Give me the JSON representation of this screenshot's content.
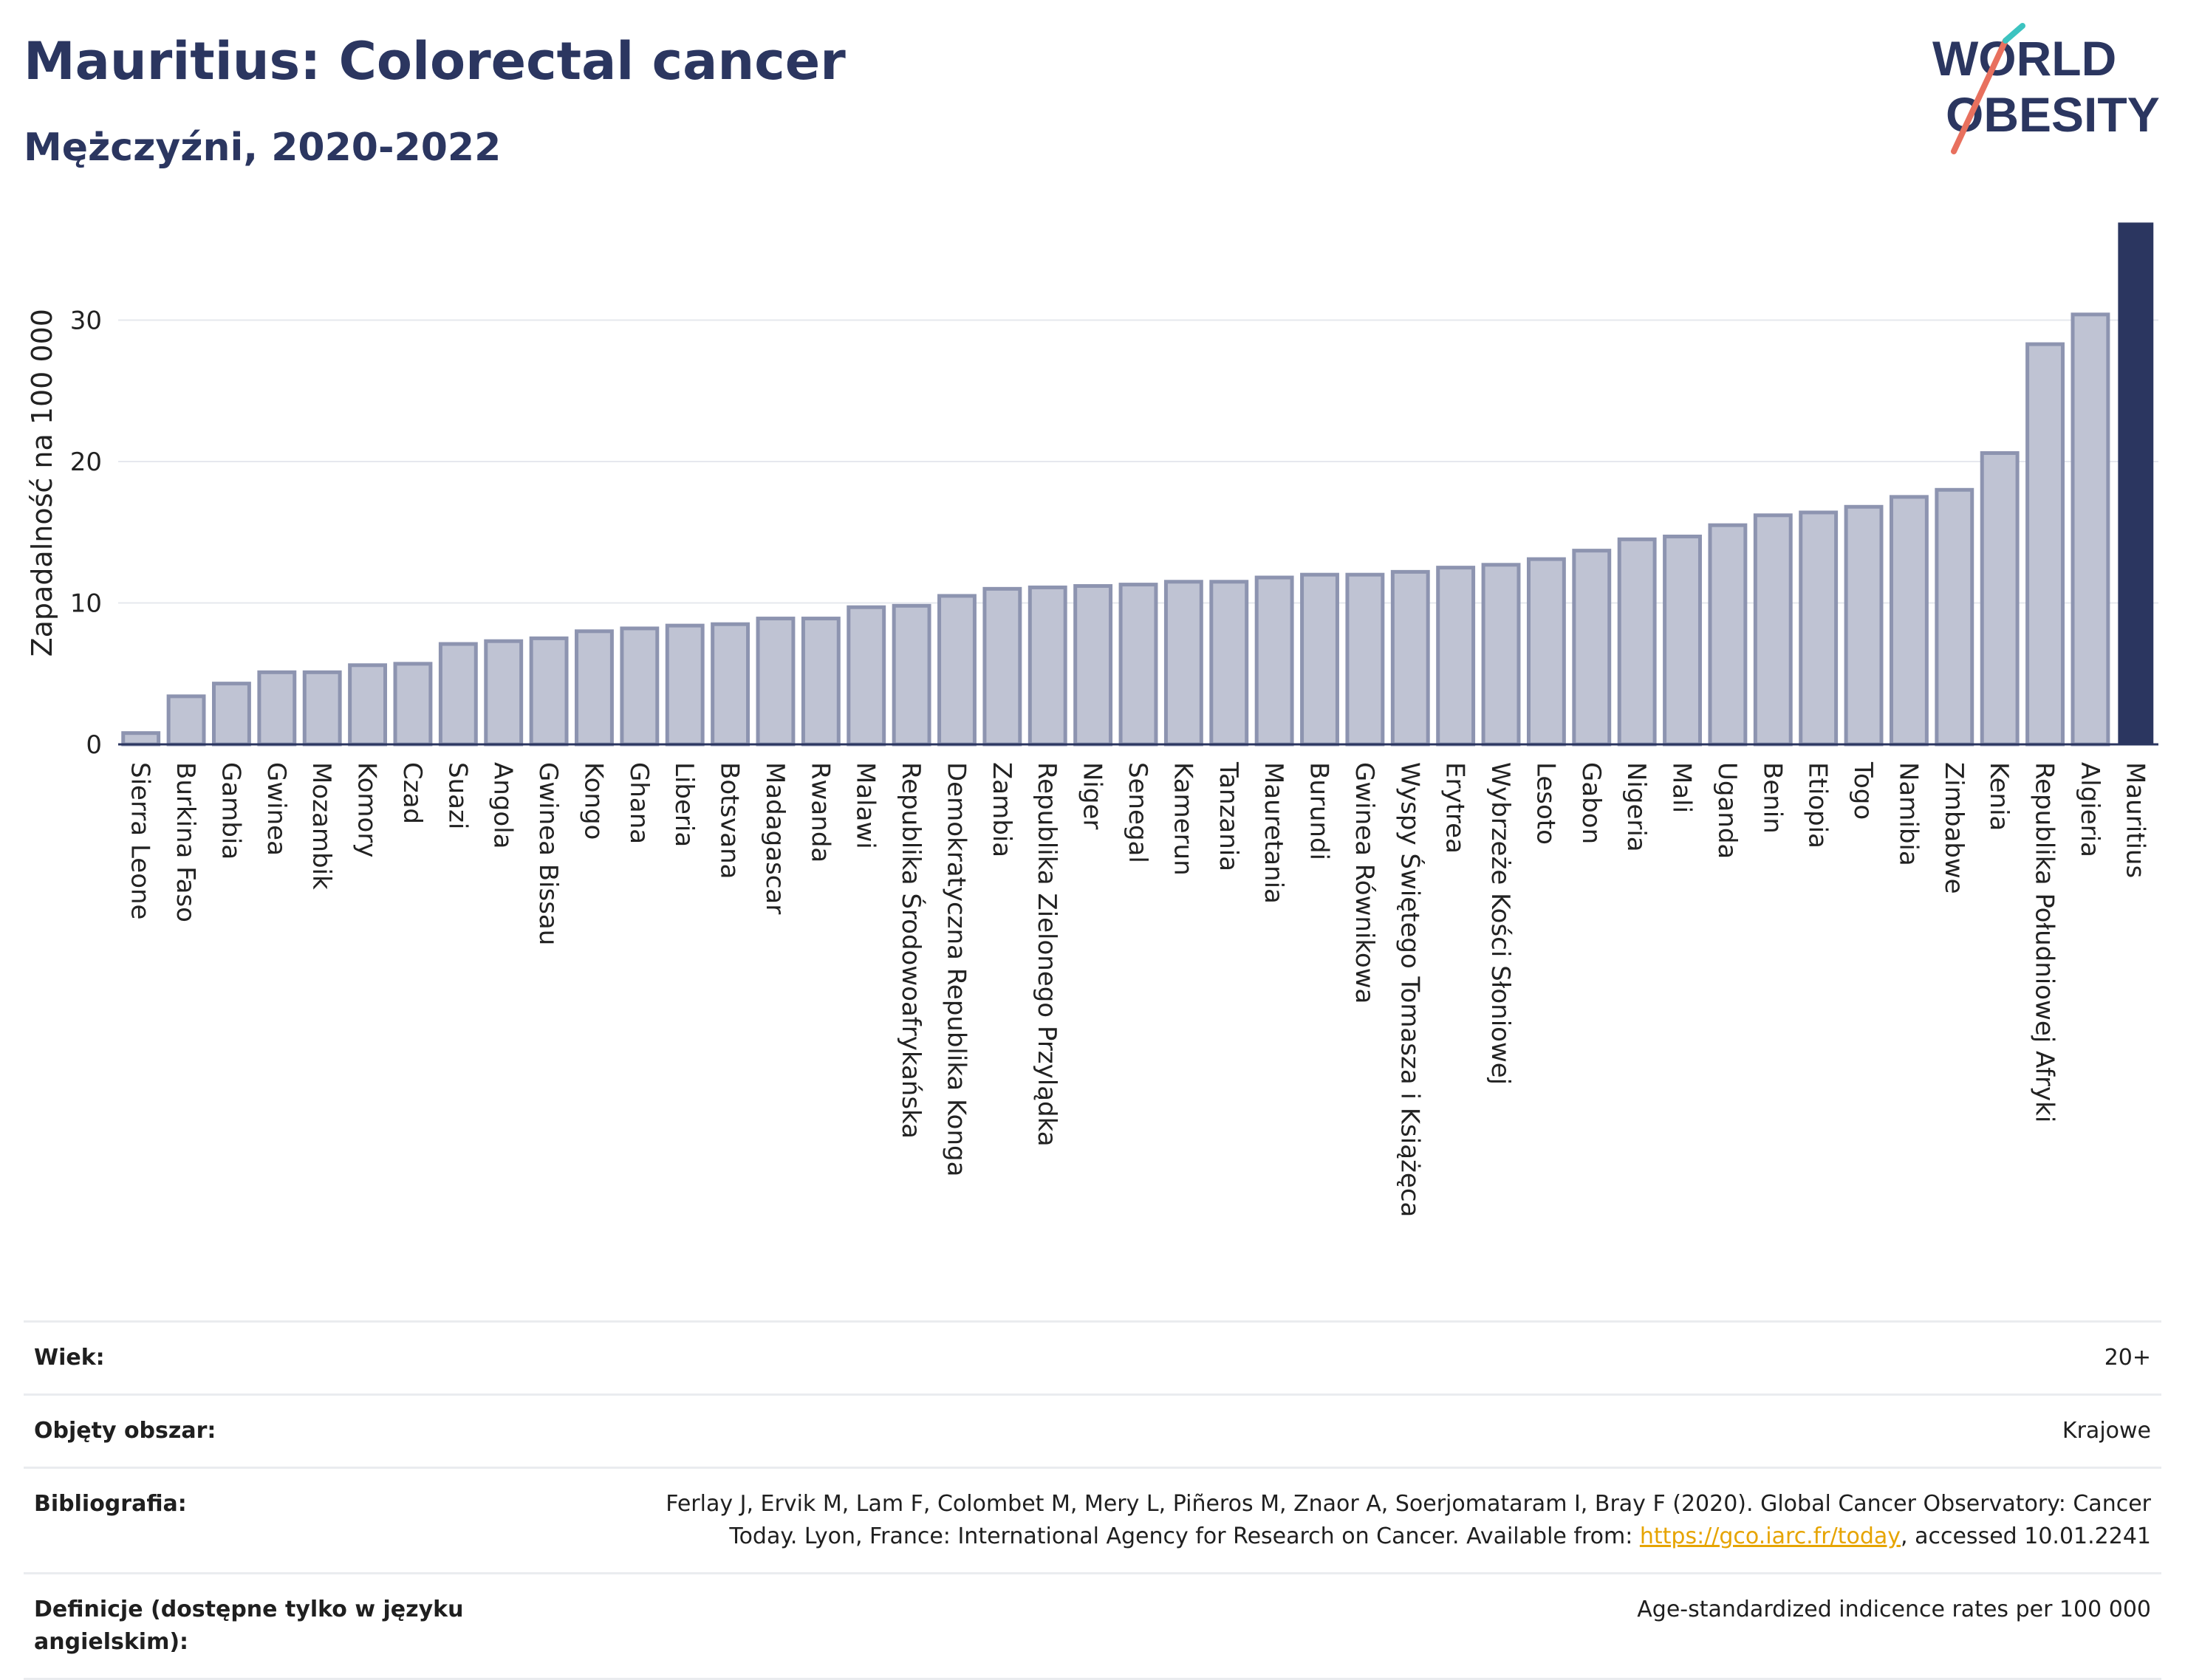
{
  "header": {
    "title": "Mauritius: Colorectal cancer",
    "subtitle": "Mężczyźni, 2020-2022"
  },
  "logo": {
    "line1": "WORLD",
    "line2": "OBESITY"
  },
  "colors": {
    "bar": "#bfc3d3",
    "bar_stroke": "#8d94b0",
    "highlight": "#2b3660",
    "grid": "#e6e8ee"
  },
  "chart_data": {
    "type": "bar",
    "title": "Mauritius: Colorectal cancer",
    "subtitle": "Mężczyźni, 2020-2022",
    "xlabel": "",
    "ylabel": "Zapadalność na 100 000",
    "ylim": [
      0,
      37
    ],
    "yticks": [
      0,
      10,
      20,
      30
    ],
    "grid": true,
    "highlight_category": "Mauritius",
    "categories": [
      "Sierra Leone",
      "Burkina Faso",
      "Gambia",
      "Gwinea",
      "Mozambik",
      "Komory",
      "Czad",
      "Suazi",
      "Angola",
      "Gwinea Bissau",
      "Kongo",
      "Ghana",
      "Liberia",
      "Botsvana",
      "Madagascar",
      "Rwanda",
      "Malawi",
      "Republika Środowoafrykańska",
      "Demokratyczna Republika Konga",
      "Zambia",
      "Republika Zielonego Przylądka",
      "Niger",
      "Senegal",
      "Kamerun",
      "Tanzania",
      "Mauretania",
      "Burundi",
      "Gwinea Równikowa",
      "Wyspy Świętego Tomasza i Książęca",
      "Erytrea",
      "Wybrzeże Kości Słoniowej",
      "Lesoto",
      "Gabon",
      "Nigeria",
      "Mali",
      "Uganda",
      "Benin",
      "Etiopia",
      "Togo",
      "Namibia",
      "Zimbabwe",
      "Kenia",
      "Republika Południowej Afryki",
      "Algieria",
      "Mauritius"
    ],
    "values": [
      0.8,
      3.4,
      4.3,
      5.1,
      5.1,
      5.6,
      5.7,
      7.1,
      7.3,
      7.5,
      8.0,
      8.2,
      8.4,
      8.5,
      8.9,
      8.9,
      9.7,
      9.8,
      10.5,
      11.0,
      11.1,
      11.2,
      11.3,
      11.5,
      11.5,
      11.8,
      12.0,
      12.0,
      12.2,
      12.5,
      12.7,
      13.1,
      13.7,
      14.5,
      14.7,
      15.5,
      16.2,
      16.4,
      16.8,
      17.5,
      18.0,
      20.6,
      28.3,
      30.4,
      36.9
    ]
  },
  "meta": [
    {
      "label": "Wiek:",
      "value": "20+"
    },
    {
      "label": "Objęty obszar:",
      "value": "Krajowe"
    },
    {
      "label": "Bibliografia:",
      "value_line1": "Ferlay J, Ervik M, Lam F, Colombet M, Mery L, Piñeros M, Znaor A, Soerjomataram I, Bray F (2020). Global Cancer Observatory: Cancer",
      "value_line2_pre": "Today. Lyon, France: International Agency for Research on Cancer. Available from: ",
      "link": "https://gco.iarc.fr/today",
      "value_line2_post": ", accessed 10.01.2241"
    },
    {
      "label": "Definicje (dostępne tylko w języku angielskim):",
      "value": "Age-standardized indicence rates per 100 000"
    }
  ]
}
